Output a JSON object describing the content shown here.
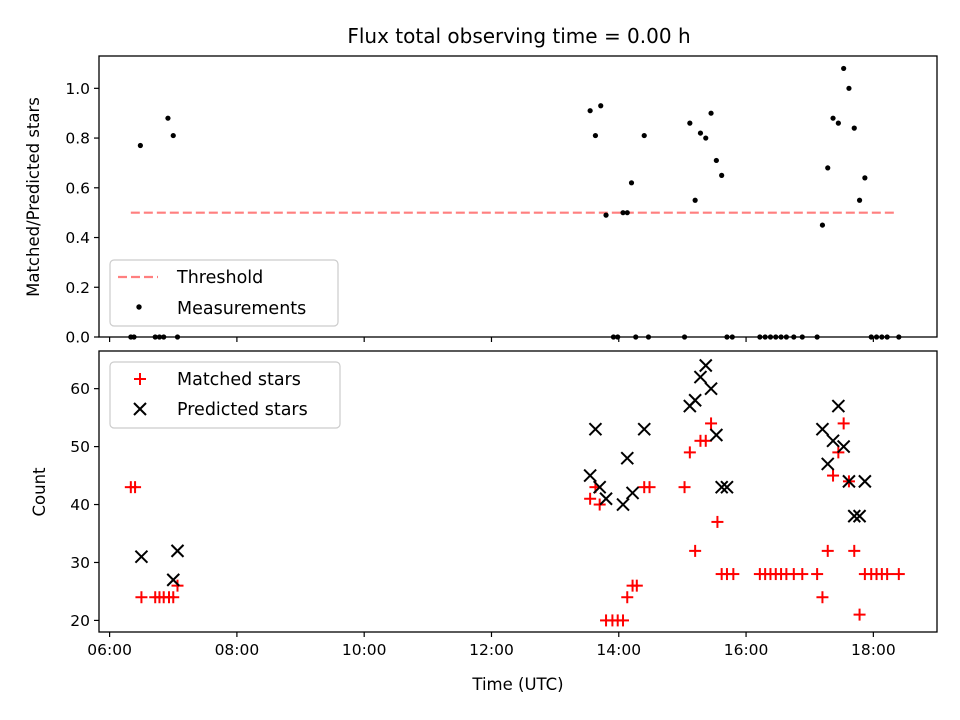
{
  "title": "Flux total observing time = 0.00 h",
  "colors": {
    "threshold": "#ff7f7f",
    "measurement": "#000000",
    "matched": "#ff0000",
    "predicted": "#000000"
  },
  "chart_data": [
    {
      "type": "scatter",
      "panel": "top",
      "title": "Flux total observing time = 0.00 h",
      "xlabel": "",
      "ylabel": "Matched/Predicted stars",
      "xlim": [
        "05:50",
        "19:00"
      ],
      "ylim": [
        0,
        1.13
      ],
      "x_ticks": [
        "06:00",
        "08:00",
        "10:00",
        "12:00",
        "14:00",
        "16:00",
        "18:00"
      ],
      "y_ticks": [
        "0.0",
        "0.2",
        "0.4",
        "0.6",
        "0.8",
        "1.0"
      ],
      "legend_position": "lower-left",
      "series": [
        {
          "name": "Threshold",
          "style": "dashed-line",
          "x": [
            "06:20",
            "18:20"
          ],
          "y": [
            0.5,
            0.5
          ]
        },
        {
          "name": "Measurements",
          "style": "points",
          "x": [
            "06:20",
            "06:23",
            "06:29",
            "06:43",
            "06:47",
            "06:51",
            "06:55",
            "07:00",
            "07:04",
            "13:33",
            "13:38",
            "13:43",
            "13:48",
            "13:55",
            "13:59",
            "14:04",
            "14:08",
            "14:12",
            "14:16",
            "14:24",
            "14:28",
            "15:02",
            "15:07",
            "15:12",
            "15:17",
            "15:22",
            "15:27",
            "15:32",
            "15:37",
            "15:42",
            "15:47",
            "16:13",
            "16:18",
            "16:23",
            "16:28",
            "16:33",
            "16:38",
            "16:45",
            "16:53",
            "17:07",
            "17:12",
            "17:17",
            "17:22",
            "17:27",
            "17:32",
            "17:37",
            "17:42",
            "17:47",
            "17:52",
            "17:58",
            "18:03",
            "18:08",
            "18:13",
            "18:24"
          ],
          "y": [
            0.0,
            0.0,
            0.77,
            0.0,
            0.0,
            0.0,
            0.88,
            0.81,
            0.0,
            0.91,
            0.81,
            0.93,
            0.49,
            0.0,
            0.0,
            0.5,
            0.5,
            0.62,
            0.0,
            0.81,
            0.0,
            0.0,
            0.86,
            0.55,
            0.82,
            0.8,
            0.9,
            0.71,
            0.65,
            0.0,
            0.0,
            0.0,
            0.0,
            0.0,
            0.0,
            0.0,
            0.0,
            0.0,
            0.0,
            0.0,
            0.45,
            0.68,
            0.88,
            0.86,
            1.08,
            1.0,
            0.84,
            0.55,
            0.64,
            0.0,
            0.0,
            0.0,
            0.0,
            0.0
          ]
        }
      ]
    },
    {
      "type": "scatter",
      "panel": "bottom",
      "xlabel": "Time (UTC)",
      "ylabel": "Count",
      "xlim": [
        "05:50",
        "19:00"
      ],
      "ylim": [
        18,
        66.5
      ],
      "x_ticks": [
        "06:00",
        "08:00",
        "10:00",
        "12:00",
        "14:00",
        "16:00",
        "18:00"
      ],
      "y_ticks": [
        "20",
        "30",
        "40",
        "50",
        "60"
      ],
      "legend_position": "upper-left",
      "series": [
        {
          "name": "Matched stars",
          "marker": "plus",
          "x": [
            "06:20",
            "06:24",
            "06:30",
            "06:43",
            "06:47",
            "06:51",
            "06:56",
            "07:00",
            "07:04",
            "13:33",
            "13:38",
            "13:42",
            "13:48",
            "13:54",
            "13:59",
            "14:04",
            "14:08",
            "14:13",
            "14:17",
            "14:24",
            "14:29",
            "15:02",
            "15:07",
            "15:12",
            "15:17",
            "15:22",
            "15:27",
            "15:33",
            "15:37",
            "15:42",
            "15:48",
            "16:13",
            "16:18",
            "16:23",
            "16:28",
            "16:33",
            "16:38",
            "16:45",
            "16:53",
            "17:07",
            "17:12",
            "17:17",
            "17:22",
            "17:27",
            "17:32",
            "17:37",
            "17:42",
            "17:47",
            "17:52",
            "17:58",
            "18:03",
            "18:08",
            "18:13",
            "18:24"
          ],
          "y": [
            43,
            43,
            24,
            24,
            24,
            24,
            24,
            24,
            26,
            41,
            43,
            40,
            20,
            20,
            20,
            20,
            24,
            26,
            26,
            43,
            43,
            43,
            49,
            32,
            51,
            51,
            54,
            37,
            28,
            28,
            28,
            28,
            28,
            28,
            28,
            28,
            28,
            28,
            28,
            28,
            24,
            32,
            45,
            49,
            54,
            44,
            32,
            21,
            28,
            28,
            28,
            28,
            28,
            28
          ]
        },
        {
          "name": "Predicted stars",
          "marker": "x",
          "x": [
            "06:30",
            "07:00",
            "07:04",
            "13:33",
            "13:38",
            "13:42",
            "13:48",
            "14:04",
            "14:08",
            "14:13",
            "14:24",
            "15:07",
            "15:12",
            "15:17",
            "15:22",
            "15:27",
            "15:32",
            "15:37",
            "15:42",
            "17:12",
            "17:17",
            "17:22",
            "17:27",
            "17:32",
            "17:37",
            "17:42",
            "17:47",
            "17:52"
          ],
          "y": [
            31,
            27,
            32,
            45,
            53,
            43,
            41,
            40,
            48,
            42,
            53,
            57,
            58,
            62,
            64,
            60,
            52,
            43,
            43,
            53,
            47,
            51,
            57,
            50,
            44,
            38,
            38,
            44
          ]
        }
      ]
    }
  ]
}
